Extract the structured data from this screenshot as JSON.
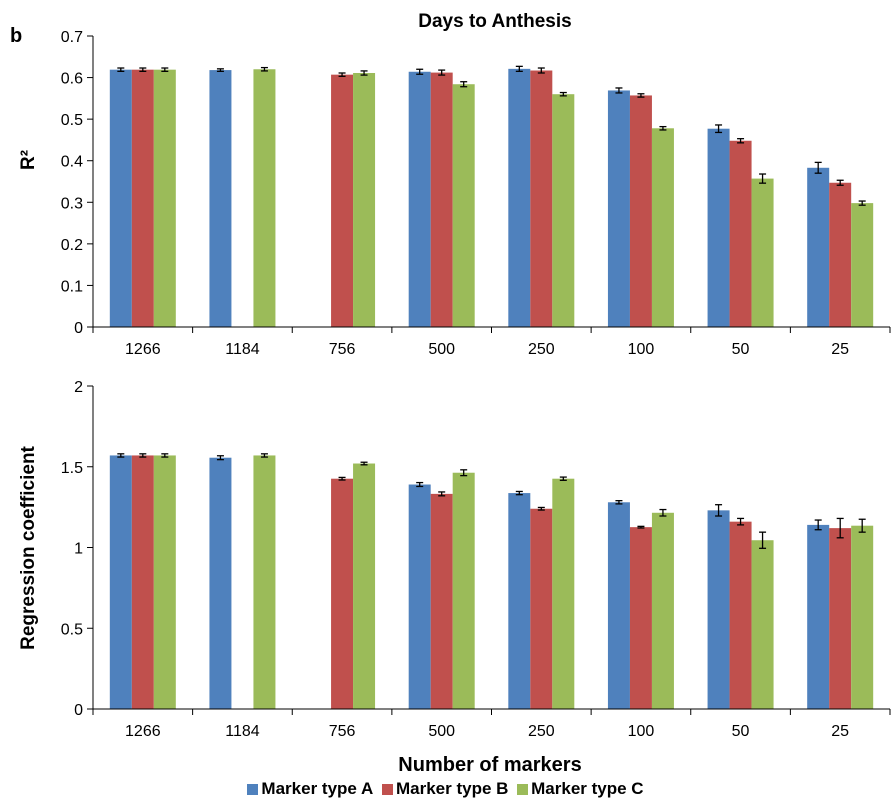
{
  "panel_label": "b",
  "chart_data": [
    {
      "type": "bar",
      "title": "Days to Anthesis",
      "xlabel": "",
      "ylabel": "R²",
      "ylim": [
        0,
        0.7
      ],
      "ytick_step": 0.1,
      "ytick_labels": [
        "0",
        "0.1",
        "0.2",
        "0.3",
        "0.4",
        "0.5",
        "0.6",
        "0.7"
      ],
      "categories": [
        "1266",
        "1184",
        "756",
        "500",
        "250",
        "100",
        "50",
        "25"
      ],
      "series": [
        {
          "name": "Marker type A",
          "values": [
            0.619,
            0.618,
            null,
            0.614,
            0.621,
            0.569,
            0.477,
            0.383
          ],
          "errors": [
            0.004,
            0.003,
            null,
            0.006,
            0.006,
            0.006,
            0.009,
            0.013
          ]
        },
        {
          "name": "Marker type B",
          "values": [
            0.619,
            null,
            0.607,
            0.612,
            0.617,
            0.557,
            0.448,
            0.347
          ],
          "errors": [
            0.004,
            null,
            0.004,
            0.006,
            0.006,
            0.004,
            0.005,
            0.006
          ]
        },
        {
          "name": "Marker type C",
          "values": [
            0.619,
            0.62,
            0.611,
            0.584,
            0.56,
            0.478,
            0.357,
            0.298
          ],
          "errors": [
            0.004,
            0.004,
            0.005,
            0.006,
            0.004,
            0.004,
            0.011,
            0.005
          ]
        }
      ]
    },
    {
      "type": "bar",
      "title": "",
      "xlabel": "Number of markers",
      "ylabel": "Regression coefficient",
      "ylim": [
        0,
        2
      ],
      "ytick_step": 0.5,
      "ytick_labels": [
        "0",
        "0.5",
        "1",
        "1.5",
        "2"
      ],
      "categories": [
        "1266",
        "1184",
        "756",
        "500",
        "250",
        "100",
        "50",
        "25"
      ],
      "series": [
        {
          "name": "Marker type A",
          "values": [
            1.57,
            1.556,
            null,
            1.39,
            1.337,
            1.28,
            1.23,
            1.14
          ],
          "errors": [
            0.01,
            0.012,
            null,
            0.012,
            0.01,
            0.01,
            0.035,
            0.03
          ]
        },
        {
          "name": "Marker type B",
          "values": [
            1.57,
            null,
            1.426,
            1.332,
            1.24,
            1.126,
            1.16,
            1.12
          ],
          "errors": [
            0.01,
            null,
            0.008,
            0.012,
            0.008,
            0.005,
            0.02,
            0.06
          ]
        },
        {
          "name": "Marker type C",
          "values": [
            1.57,
            1.57,
            1.52,
            1.463,
            1.426,
            1.215,
            1.045,
            1.135
          ],
          "errors": [
            0.01,
            0.01,
            0.008,
            0.018,
            0.01,
            0.02,
            0.05,
            0.04
          ]
        }
      ]
    }
  ],
  "legend": {
    "position": "bottom",
    "items": [
      {
        "label": "Marker type A",
        "color": "#4f81bd"
      },
      {
        "label": "Marker type B",
        "color": "#c0504d"
      },
      {
        "label": "Marker type C",
        "color": "#9bbb59"
      }
    ]
  }
}
